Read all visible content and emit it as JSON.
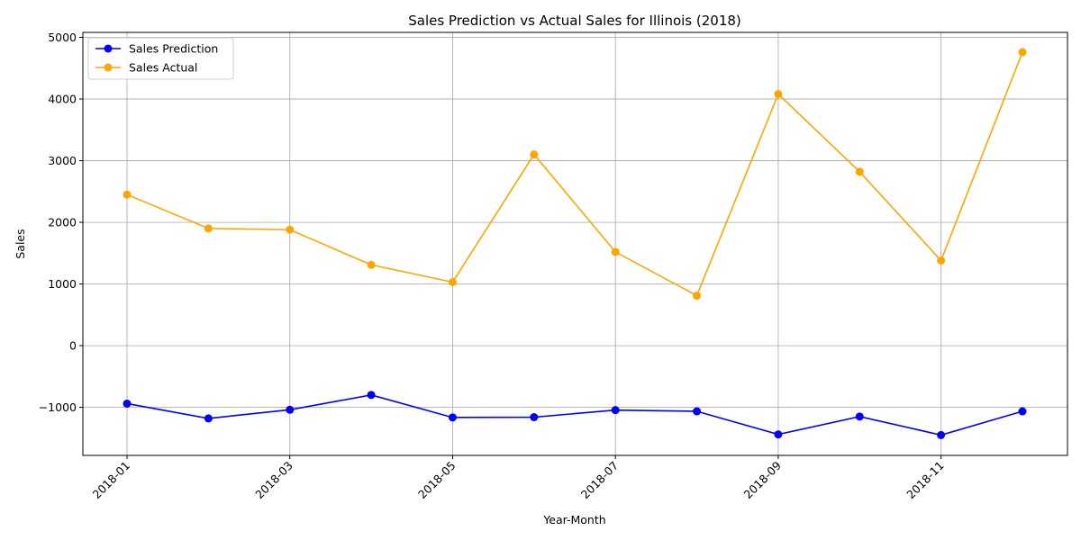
{
  "chart_data": {
    "type": "line",
    "title": "Sales Prediction vs Actual Sales for Illinois (2018)",
    "xlabel": "Year-Month",
    "ylabel": "Sales",
    "x": [
      "2018-01",
      "2018-02",
      "2018-03",
      "2018-04",
      "2018-05",
      "2018-06",
      "2018-07",
      "2018-08",
      "2018-09",
      "2018-10",
      "2018-11",
      "2018-12"
    ],
    "x_ticks": [
      "2018-01",
      "2018-03",
      "2018-05",
      "2018-07",
      "2018-09",
      "2018-11"
    ],
    "y_ticks": [
      -1000,
      0,
      1000,
      2000,
      3000,
      4000,
      5000
    ],
    "y_tick_labels": [
      "−1000",
      "0",
      "1000",
      "2000",
      "3000",
      "4000",
      "5000"
    ],
    "ylim": [
      -1780,
      5080
    ],
    "grid": true,
    "legend_position": "top-left",
    "series": [
      {
        "name": "Sales Prediction",
        "color": "#0000ff",
        "values": [
          -940,
          -1180,
          -1040,
          -800,
          -1165,
          -1160,
          -1045,
          -1065,
          -1440,
          -1150,
          -1450,
          -1065
        ]
      },
      {
        "name": "Sales Actual",
        "color": "#ffa500",
        "values": [
          2450,
          1900,
          1880,
          1310,
          1030,
          3100,
          1520,
          810,
          4080,
          2820,
          1380,
          4760
        ]
      }
    ]
  }
}
